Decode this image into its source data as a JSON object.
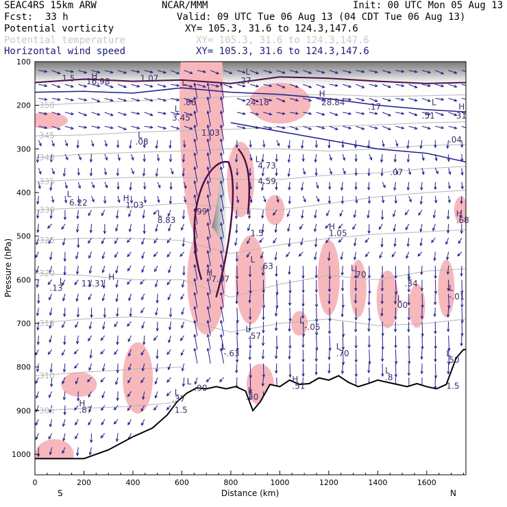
{
  "header": {
    "model": "SEAC4RS 15km ARW",
    "org": "NCAR/MMM",
    "init": "Init: 00 UTC Mon 05 Aug 13",
    "fcst_label": "Fcst:",
    "fcst_value": "33 h",
    "valid": "Valid: 09 UTC Tue 06 Aug 13 (04 CDT Tue 06 Aug 13)"
  },
  "legend": {
    "fields": [
      {
        "name": "Potential vorticity",
        "xy": "XY= 105.3, 31.6 to 124.3,147.6",
        "color": "#1a1a7a"
      },
      {
        "name": "Potential temperature",
        "xy": "XY= 105.3, 31.6 to 124.3,147.6",
        "color": "#c8c8c8"
      },
      {
        "name": "Horizontal wind speed",
        "xy": "XY= 105.3, 31.6 to 124.3,147.6",
        "color": "#1a1a7a"
      }
    ]
  },
  "colors": {
    "pv_fill": "#f7b8bc",
    "pv_contour": "#4a1048",
    "wind": "#1c1c8c",
    "theta": "#b4b4b4",
    "terrain": "#000000"
  },
  "chart_data": {
    "type": "cross-section",
    "xlabel": "Distance (km)",
    "ylabel": "Pressure (hPa)",
    "xlim": [
      0,
      1760
    ],
    "ylim": [
      1050,
      100
    ],
    "x_ticks": [
      0,
      200,
      400,
      600,
      800,
      1000,
      1200,
      1400,
      1600
    ],
    "y_ticks": [
      100,
      200,
      300,
      400,
      500,
      600,
      700,
      800,
      900,
      1000
    ],
    "x_end_labels": {
      "left": "S",
      "right": "N"
    },
    "theta_contours": [
      {
        "label": "305",
        "points": [
          [
            0,
            900
          ],
          [
            200,
            895
          ],
          [
            400,
            890
          ],
          [
            600,
            880
          ]
        ]
      },
      {
        "label": "310",
        "points": [
          [
            0,
            820
          ],
          [
            200,
            812
          ],
          [
            400,
            805
          ],
          [
            600,
            800
          ]
        ]
      },
      {
        "label": "315",
        "points": [
          [
            0,
            700
          ],
          [
            200,
            690
          ],
          [
            400,
            685
          ],
          [
            600,
            690
          ],
          [
            800,
            720
          ],
          [
            1000,
            700
          ],
          [
            1200,
            690
          ],
          [
            1400,
            705
          ],
          [
            1600,
            700
          ],
          [
            1760,
            690
          ]
        ]
      },
      {
        "label": "320",
        "points": [
          [
            0,
            585
          ],
          [
            200,
            590
          ],
          [
            400,
            600
          ],
          [
            600,
            600
          ],
          [
            800,
            640
          ],
          [
            1000,
            610
          ],
          [
            1200,
            590
          ],
          [
            1400,
            600
          ],
          [
            1600,
            580
          ],
          [
            1760,
            575
          ]
        ]
      },
      {
        "label": "325",
        "points": [
          [
            0,
            510
          ],
          [
            200,
            505
          ],
          [
            400,
            505
          ],
          [
            600,
            510
          ],
          [
            800,
            540
          ],
          [
            1000,
            520
          ],
          [
            1200,
            505
          ],
          [
            1400,
            495
          ],
          [
            1600,
            490
          ],
          [
            1760,
            485
          ]
        ]
      },
      {
        "label": "330",
        "points": [
          [
            0,
            440
          ],
          [
            200,
            435
          ],
          [
            400,
            432
          ],
          [
            600,
            425
          ],
          [
            800,
            435
          ],
          [
            1000,
            440
          ],
          [
            1200,
            425
          ],
          [
            1400,
            410
          ],
          [
            1600,
            400
          ],
          [
            1760,
            395
          ]
        ]
      },
      {
        "label": "335",
        "points": [
          [
            0,
            375
          ],
          [
            200,
            370
          ],
          [
            400,
            365
          ],
          [
            600,
            365
          ],
          [
            800,
            370
          ],
          [
            1000,
            370
          ],
          [
            1200,
            360
          ],
          [
            1400,
            355
          ],
          [
            1600,
            345
          ],
          [
            1760,
            340
          ]
        ]
      },
      {
        "label": "340",
        "points": [
          [
            0,
            320
          ],
          [
            200,
            312
          ],
          [
            400,
            308
          ],
          [
            600,
            305
          ],
          [
            800,
            300
          ],
          [
            1000,
            300
          ],
          [
            1200,
            305
          ],
          [
            1400,
            300
          ],
          [
            1600,
            292
          ],
          [
            1760,
            290
          ]
        ]
      },
      {
        "label": "345",
        "points": [
          [
            0,
            270
          ],
          [
            200,
            268
          ],
          [
            400,
            262
          ],
          [
            600,
            258
          ],
          [
            800,
            255
          ],
          [
            1000,
            250
          ],
          [
            1200,
            248
          ],
          [
            1400,
            245
          ],
          [
            1600,
            240
          ],
          [
            1760,
            238
          ]
        ]
      },
      {
        "label": "350",
        "points": [
          [
            0,
            200
          ],
          [
            200,
            195
          ],
          [
            400,
            190
          ],
          [
            600,
            185
          ],
          [
            800,
            180
          ],
          [
            1000,
            178
          ],
          [
            1200,
            175
          ],
          [
            1400,
            180
          ],
          [
            1600,
            178
          ],
          [
            1760,
            176
          ]
        ]
      }
    ],
    "pv_labels": [
      {
        "x": 110,
        "p": 145,
        "text": "1.5"
      },
      {
        "x": 210,
        "p": 152,
        "text": "16.98"
      },
      {
        "x": 430,
        "p": 145,
        "text": "1.07"
      },
      {
        "x": 560,
        "p": 235,
        "text": "3.45"
      },
      {
        "x": 605,
        "p": 200,
        "text": ".86"
      },
      {
        "x": 830,
        "p": 150,
        "text": ".27"
      },
      {
        "x": 860,
        "p": 200,
        "text": "24.18"
      },
      {
        "x": 1170,
        "p": 200,
        "text": "28.84"
      },
      {
        "x": 1360,
        "p": 210,
        "text": ".17"
      },
      {
        "x": 1580,
        "p": 230,
        "text": ".51"
      },
      {
        "x": 1720,
        "p": 230,
        "text": "31"
      },
      {
        "x": 1690,
        "p": 285,
        "text": ".04"
      },
      {
        "x": 410,
        "p": 290,
        "text": ".08"
      },
      {
        "x": 680,
        "p": 270,
        "text": "1.03"
      },
      {
        "x": 910,
        "p": 345,
        "text": "4.73"
      },
      {
        "x": 910,
        "p": 380,
        "text": "4.59"
      },
      {
        "x": 1450,
        "p": 360,
        "text": ".07"
      },
      {
        "x": 140,
        "p": 430,
        "text": "6.22"
      },
      {
        "x": 370,
        "p": 435,
        "text": "1.03"
      },
      {
        "x": 500,
        "p": 470,
        "text": "8.83"
      },
      {
        "x": 650,
        "p": 450,
        "text": ".99"
      },
      {
        "x": 880,
        "p": 500,
        "text": "1.5"
      },
      {
        "x": 1200,
        "p": 500,
        "text": "1.05"
      },
      {
        "x": 1720,
        "p": 470,
        "text": ".68"
      },
      {
        "x": 920,
        "p": 575,
        "text": ".63"
      },
      {
        "x": 190,
        "p": 615,
        "text": "11.31"
      },
      {
        "x": 60,
        "p": 625,
        "text": ".13"
      },
      {
        "x": 720,
        "p": 605,
        "text": "7.47"
      },
      {
        "x": 1300,
        "p": 595,
        "text": ".70"
      },
      {
        "x": 1510,
        "p": 615,
        "text": ".34"
      },
      {
        "x": 1690,
        "p": 645,
        "text": "-.01"
      },
      {
        "x": 1480,
        "p": 665,
        "text": "00"
      },
      {
        "x": 1100,
        "p": 715,
        "text": "-.05"
      },
      {
        "x": 870,
        "p": 735,
        "text": ".57"
      },
      {
        "x": 770,
        "p": 775,
        "text": "-.63"
      },
      {
        "x": 1230,
        "p": 775,
        "text": ".70"
      },
      {
        "x": 1680,
        "p": 790,
        "text": ".50"
      },
      {
        "x": 1430,
        "p": 830,
        "text": ".8"
      },
      {
        "x": 650,
        "p": 855,
        "text": ".90"
      },
      {
        "x": 1050,
        "p": 850,
        "text": ".51"
      },
      {
        "x": 1680,
        "p": 850,
        "text": "1.5"
      },
      {
        "x": 560,
        "p": 880,
        "text": ".37"
      },
      {
        "x": 570,
        "p": 905,
        "text": "1.5"
      },
      {
        "x": 860,
        "p": 875,
        "text": ".30"
      },
      {
        "x": 180,
        "p": 905,
        "text": ".87"
      }
    ],
    "hl_markers": [
      {
        "x": 230,
        "p": 140,
        "text": "H"
      },
      {
        "x": 600,
        "p": 155,
        "text": "L"
      },
      {
        "x": 570,
        "p": 215,
        "text": "L"
      },
      {
        "x": 860,
        "p": 130,
        "text": "L"
      },
      {
        "x": 1160,
        "p": 180,
        "text": "H"
      },
      {
        "x": 1620,
        "p": 200,
        "text": "L"
      },
      {
        "x": 1730,
        "p": 210,
        "text": "H"
      },
      {
        "x": 420,
        "p": 275,
        "text": "L"
      },
      {
        "x": 900,
        "p": 330,
        "text": "L"
      },
      {
        "x": 130,
        "p": 410,
        "text": "L"
      },
      {
        "x": 360,
        "p": 420,
        "text": "H"
      },
      {
        "x": 500,
        "p": 455,
        "text": "L"
      },
      {
        "x": 1200,
        "p": 485,
        "text": "H"
      },
      {
        "x": 1720,
        "p": 455,
        "text": "H"
      },
      {
        "x": 880,
        "p": 560,
        "text": "L"
      },
      {
        "x": 300,
        "p": 600,
        "text": "H"
      },
      {
        "x": 100,
        "p": 610,
        "text": "L"
      },
      {
        "x": 700,
        "p": 590,
        "text": "H"
      },
      {
        "x": 1290,
        "p": 580,
        "text": "L"
      },
      {
        "x": 1520,
        "p": 600,
        "text": "L"
      },
      {
        "x": 1690,
        "p": 625,
        "text": "L"
      },
      {
        "x": 1480,
        "p": 650,
        "text": "L"
      },
      {
        "x": 1080,
        "p": 700,
        "text": "L"
      },
      {
        "x": 860,
        "p": 720,
        "text": "L"
      },
      {
        "x": 760,
        "p": 760,
        "text": "L"
      },
      {
        "x": 1230,
        "p": 760,
        "text": "L"
      },
      {
        "x": 1680,
        "p": 775,
        "text": "L"
      },
      {
        "x": 1430,
        "p": 815,
        "text": "L"
      },
      {
        "x": 620,
        "p": 840,
        "text": "L"
      },
      {
        "x": 1050,
        "p": 835,
        "text": "H"
      },
      {
        "x": 870,
        "p": 860,
        "text": "L"
      },
      {
        "x": 570,
        "p": 865,
        "text": "L"
      },
      {
        "x": 180,
        "p": 890,
        "text": "H"
      }
    ],
    "terrain": [
      [
        0,
        1010
      ],
      [
        200,
        1010
      ],
      [
        300,
        990
      ],
      [
        400,
        960
      ],
      [
        480,
        940
      ],
      [
        540,
        910
      ],
      [
        580,
        880
      ],
      [
        620,
        860
      ],
      [
        660,
        848
      ],
      [
        700,
        850
      ],
      [
        740,
        845
      ],
      [
        780,
        850
      ],
      [
        820,
        845
      ],
      [
        860,
        855
      ],
      [
        890,
        900
      ],
      [
        920,
        880
      ],
      [
        960,
        840
      ],
      [
        1000,
        845
      ],
      [
        1040,
        830
      ],
      [
        1080,
        840
      ],
      [
        1120,
        838
      ],
      [
        1160,
        825
      ],
      [
        1200,
        830
      ],
      [
        1240,
        820
      ],
      [
        1280,
        835
      ],
      [
        1320,
        845
      ],
      [
        1360,
        838
      ],
      [
        1400,
        830
      ],
      [
        1440,
        835
      ],
      [
        1480,
        840
      ],
      [
        1520,
        845
      ],
      [
        1560,
        838
      ],
      [
        1600,
        845
      ],
      [
        1640,
        850
      ],
      [
        1680,
        840
      ],
      [
        1720,
        780
      ],
      [
        1750,
        760
      ],
      [
        1760,
        760
      ]
    ]
  }
}
